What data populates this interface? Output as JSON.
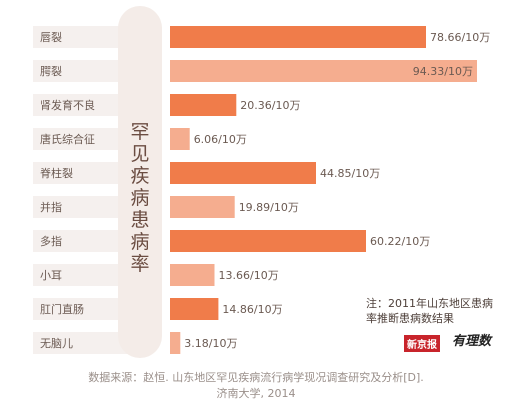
{
  "chart_data": {
    "type": "bar",
    "orientation": "horizontal",
    "title": "罕见疾病患病率",
    "categories": [
      "唇裂",
      "腭裂",
      "肾发育不良",
      "唐氏综合征",
      "脊柱裂",
      "并指",
      "多指",
      "小耳",
      "肛门直肠",
      "无脑儿"
    ],
    "values": [
      78.66,
      94.33,
      20.36,
      6.06,
      44.85,
      19.89,
      60.22,
      13.66,
      14.86,
      3.18
    ],
    "value_labels": [
      "78.66/10万",
      "94.33/10万",
      "20.36/10万",
      "6.06/10万",
      "44.85/10万",
      "19.89/10万",
      "60.22/10万",
      "13.66/10万",
      "14.86/10万",
      "3.18/10万"
    ],
    "unit": "/10万",
    "xlim": [
      0,
      94.33
    ],
    "colors": {
      "primary": "#f07c4a",
      "secondary": "#f5ad8f",
      "label_bg": "#f5f0ee",
      "title_panel": "#f4ece8"
    }
  },
  "note": "注：2011年山东地区患病率推断患病数结果",
  "source_line1": "数据来源：赵恒. 山东地区罕见疾病流行病学现况调查研究及分析[D].",
  "source_line2": "济南大学, 2014",
  "logos": [
    "新京报",
    "有理数"
  ]
}
